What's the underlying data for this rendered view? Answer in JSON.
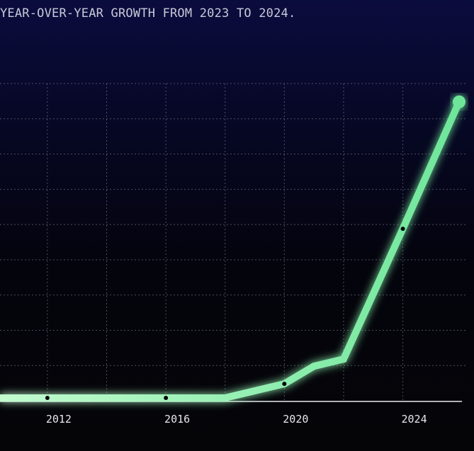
{
  "chart_data": {
    "type": "line",
    "title": "YEAR-OVER-YEAR GROWTH FROM 2023 TO 2024.",
    "xlabel": "",
    "ylabel": "",
    "xlim": [
      2010.4,
      2025.9
    ],
    "ylim": [
      0,
      9
    ],
    "grid": true,
    "x_ticks": [
      "2012",
      "2016",
      "2020",
      "2024"
    ],
    "series": [
      {
        "x": [
          2010.4,
          2012,
          2016,
          2018,
          2020,
          2021,
          2022,
          2024,
          2025.9
        ],
        "y": [
          0,
          0,
          0,
          0,
          0.4,
          0.9,
          1.1,
          4.8,
          8.4
        ],
        "markers_at": [
          2012,
          2016,
          2020,
          2024
        ]
      }
    ],
    "colors": {
      "line_start": "#c2fbcf",
      "line_end": "#6ee69a",
      "marker": "#05060a",
      "grid": "#6b6e80",
      "axis": "#e8e8f0"
    }
  }
}
